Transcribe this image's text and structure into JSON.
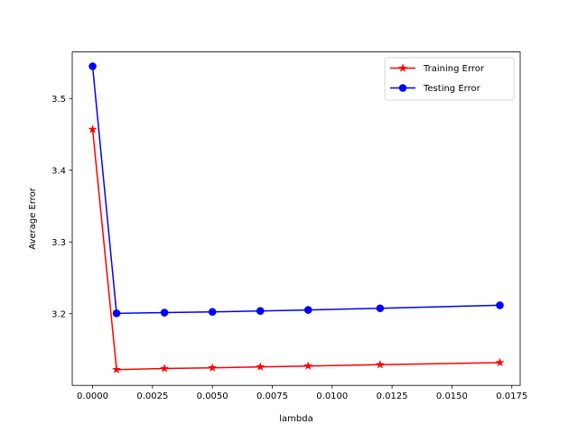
{
  "chart_data": {
    "type": "line",
    "title": "",
    "xlabel": "lambda",
    "ylabel": "Average Error",
    "xlim": [
      -0.00085,
      0.01785
    ],
    "ylim": [
      3.1,
      3.565
    ],
    "x": [
      0.0,
      0.001,
      0.003,
      0.005,
      0.007,
      0.009,
      0.012,
      0.017
    ],
    "series": [
      {
        "name": "Training Error",
        "color": "#ff0000",
        "marker": "star",
        "values": [
          3.457,
          3.122,
          3.1235,
          3.1245,
          3.1258,
          3.127,
          3.1288,
          3.1317
        ]
      },
      {
        "name": "Testing Error",
        "color": "#0000ff",
        "marker": "circle",
        "values": [
          3.545,
          3.2005,
          3.2015,
          3.2025,
          3.2038,
          3.2052,
          3.2075,
          3.2117
        ]
      }
    ],
    "x_ticks": [
      {
        "value": 0.0,
        "label": "0.0000"
      },
      {
        "value": 0.0025,
        "label": "0.0025"
      },
      {
        "value": 0.005,
        "label": "0.0050"
      },
      {
        "value": 0.0075,
        "label": "0.0075"
      },
      {
        "value": 0.01,
        "label": "0.0100"
      },
      {
        "value": 0.0125,
        "label": "0.0125"
      },
      {
        "value": 0.015,
        "label": "0.0150"
      },
      {
        "value": 0.0175,
        "label": "0.0175"
      }
    ],
    "y_ticks": [
      {
        "value": 3.2,
        "label": "3.2"
      },
      {
        "value": 3.3,
        "label": "3.3"
      },
      {
        "value": 3.4,
        "label": "3.4"
      },
      {
        "value": 3.5,
        "label": "3.5"
      }
    ],
    "grid": false,
    "legend_position": "top-right"
  }
}
